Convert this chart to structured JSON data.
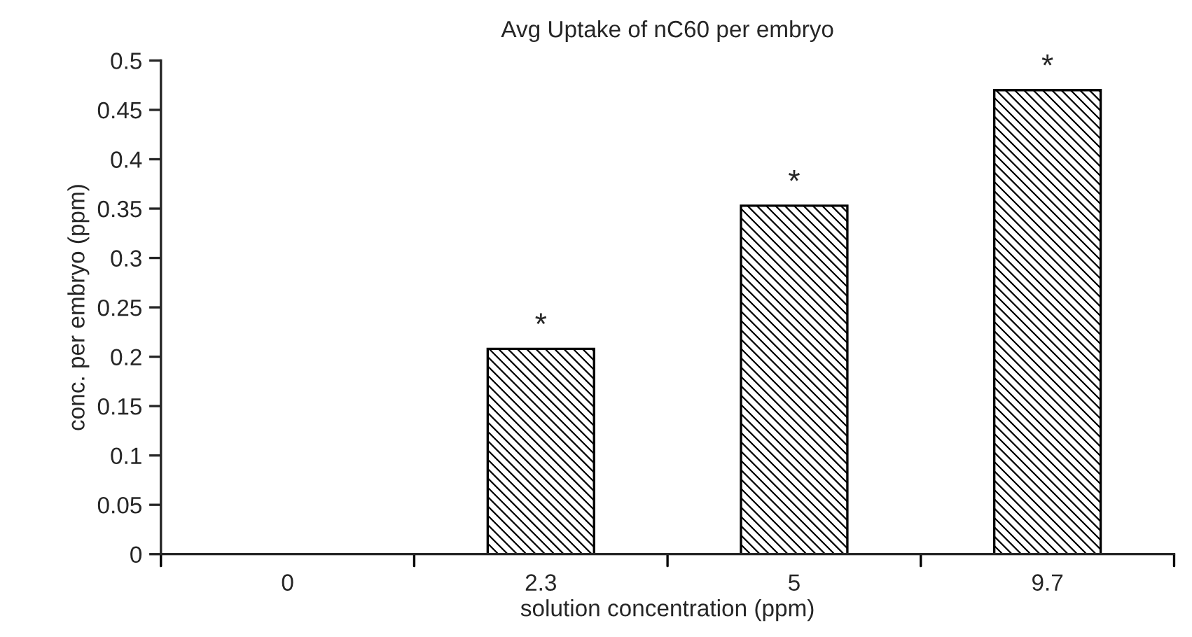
{
  "chart_data": {
    "type": "bar",
    "title": "Avg Uptake of nC60 per embryo",
    "xlabel": "solution concentration (ppm)",
    "ylabel": "conc. per embryo (ppm)",
    "categories": [
      "0",
      "2.3",
      "5",
      "9.7"
    ],
    "values": [
      0,
      0.208,
      0.353,
      0.47
    ],
    "color": "#000000",
    "ylim": [
      0,
      0.5
    ],
    "yticks": [
      0,
      0.05,
      0.1,
      0.15,
      0.2,
      0.25,
      0.3,
      0.35,
      0.4,
      0.45,
      0.5
    ],
    "grid": false,
    "legend": false,
    "annotations": [
      {
        "text": "*",
        "x": "2.3",
        "y": 0.208
      },
      {
        "text": "*",
        "x": "5",
        "y": 0.353
      },
      {
        "text": "*",
        "x": "9.7",
        "y": 0.47
      }
    ]
  }
}
